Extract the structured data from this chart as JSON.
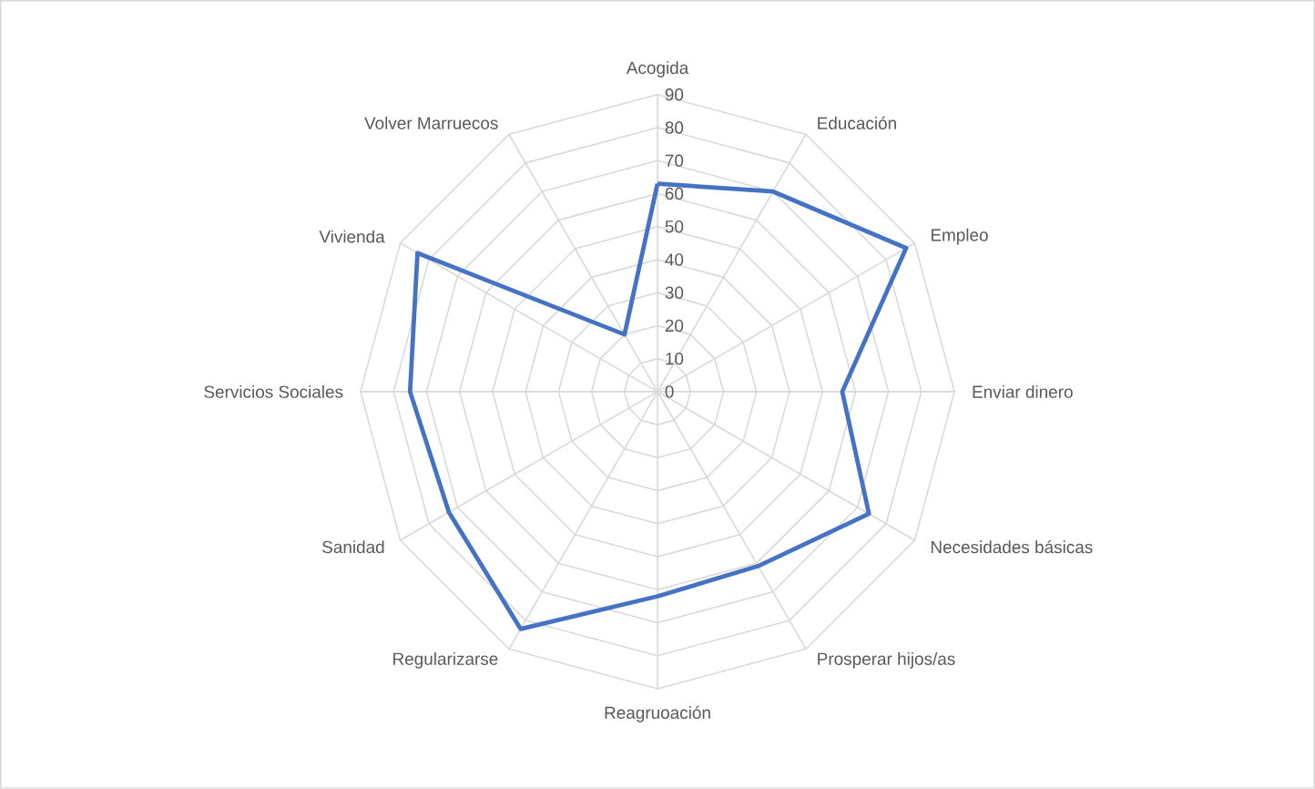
{
  "chart_data": {
    "type": "radar",
    "categories": [
      "Acogida",
      "Educación",
      "Empleo",
      "Enviar dinero",
      "Necesidades básicas",
      "Prosperar hijos/as",
      "Reagruoación",
      "Regularizarse",
      "Sanidad",
      "Servicios Sociales",
      "Vivienda",
      "Volver Marruecos"
    ],
    "series": [
      {
        "color": "#4472c4",
        "values": [
          63,
          70,
          87,
          56,
          74,
          61,
          62,
          83,
          73,
          75,
          84,
          20
        ]
      }
    ],
    "ylim": [
      0,
      90
    ],
    "yticks": [
      0,
      10,
      20,
      30,
      40,
      50,
      60,
      70,
      80,
      90
    ],
    "grid": true
  }
}
